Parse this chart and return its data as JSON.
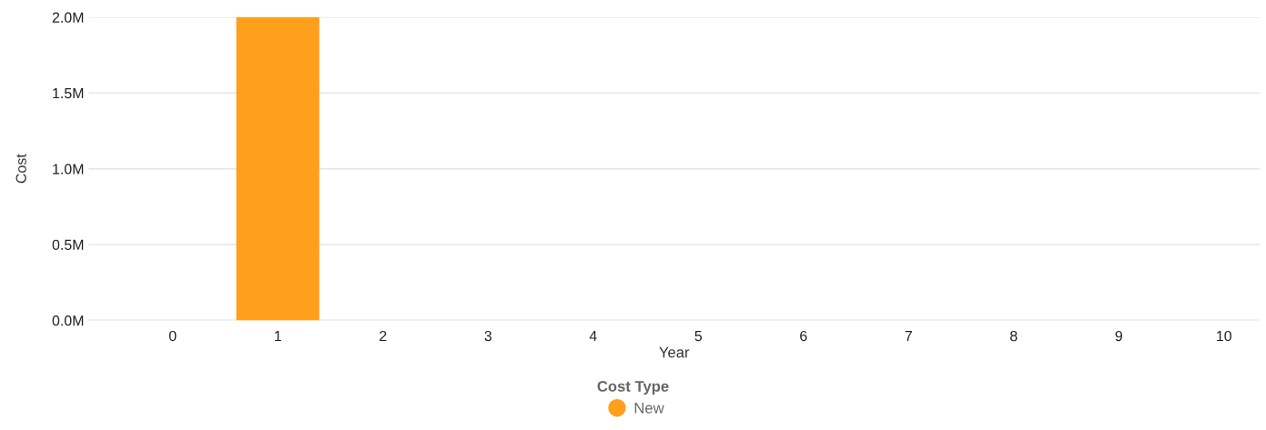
{
  "chart_data": {
    "type": "bar",
    "xlabel": "Year",
    "ylabel": "Cost",
    "legend_title": "Cost Type",
    "categories": [
      "0",
      "1",
      "2",
      "3",
      "4",
      "5",
      "6",
      "7",
      "8",
      "9",
      "10"
    ],
    "series": [
      {
        "name": "New",
        "color": "#ff9f1c",
        "values": [
          0,
          2000000,
          0,
          0,
          0,
          0,
          0,
          0,
          0,
          0,
          0
        ]
      }
    ],
    "ylim": [
      0,
      2000000
    ],
    "yticks": [
      {
        "value": 0,
        "label": "0.0M"
      },
      {
        "value": 500000,
        "label": "0.5M"
      },
      {
        "value": 1000000,
        "label": "1.0M"
      },
      {
        "value": 1500000,
        "label": "1.5M"
      },
      {
        "value": 2000000,
        "label": "2.0M"
      }
    ],
    "grid": "y",
    "legend": "bottom"
  }
}
